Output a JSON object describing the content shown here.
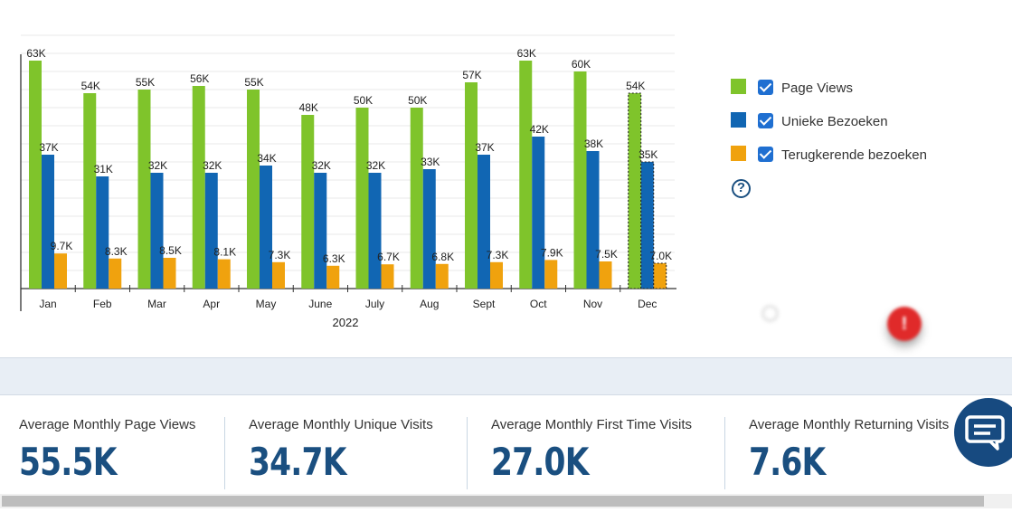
{
  "chart_data": {
    "type": "bar",
    "categories": [
      "Jan",
      "Feb",
      "Mar",
      "Apr",
      "May",
      "June",
      "July",
      "Aug",
      "Sept",
      "Oct",
      "Nov",
      "Dec"
    ],
    "xlabel": "2022",
    "ylim": [
      0,
      70000
    ],
    "grid": true,
    "series": [
      {
        "name": "Page Views",
        "color": "#7fc42b",
        "values": [
          63000,
          54000,
          55000,
          56000,
          55000,
          48000,
          50000,
          50000,
          57000,
          63000,
          60000,
          54000
        ],
        "labels": [
          "63K",
          "54K",
          "55K",
          "56K",
          "55K",
          "48K",
          "50K",
          "50K",
          "57K",
          "63K",
          "60K",
          "54K"
        ]
      },
      {
        "name": "Unieke Bezoeken",
        "color": "#1166b3",
        "values": [
          37000,
          31000,
          32000,
          32000,
          34000,
          32000,
          32000,
          33000,
          37000,
          42000,
          38000,
          35000
        ],
        "labels": [
          "37K",
          "31K",
          "32K",
          "32K",
          "34K",
          "32K",
          "32K",
          "33K",
          "37K",
          "42K",
          "38K",
          "35K"
        ]
      },
      {
        "name": "Terugkerende bezoeken",
        "color": "#f0a20e",
        "values": [
          9700,
          8300,
          8500,
          8100,
          7300,
          6300,
          6700,
          6800,
          7300,
          7900,
          7500,
          7000
        ],
        "labels": [
          "9.7K",
          "8.3K",
          "8.5K",
          "8.1K",
          "7.3K",
          "6.3K",
          "6.7K",
          "6.8K",
          "7.3K",
          "7.9K",
          "7.5K",
          "7.0K"
        ]
      }
    ],
    "projected_category": "Dec",
    "legend_position": "right"
  },
  "legend": {
    "items": [
      {
        "label": "Page Views",
        "color": "#7fc42b",
        "checked": true
      },
      {
        "label": "Unieke Bezoeken",
        "color": "#1166b3",
        "checked": true
      },
      {
        "label": "Terugkerende bezoeken",
        "color": "#f0a20e",
        "checked": true
      }
    ],
    "help_icon": "question-circle-icon",
    "help_text": "?"
  },
  "notification": {
    "badge": "!"
  },
  "stats": [
    {
      "label": "Average Monthly Page Views",
      "value": "55.5K"
    },
    {
      "label": "Average Monthly Unique Visits",
      "value": "34.7K"
    },
    {
      "label": "Average Monthly First Time Visits",
      "value": "27.0K"
    },
    {
      "label": "Average Monthly Returning Visits",
      "value": "7.6K"
    }
  ],
  "chat_button": {
    "icon": "chat-bubble-icon",
    "color": "#174a80"
  }
}
